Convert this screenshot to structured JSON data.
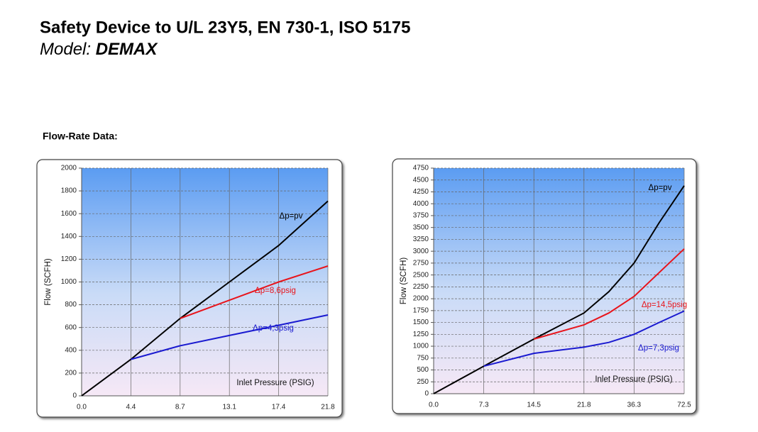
{
  "header": {
    "title": "Safety Device to U/L 23Y5, EN 730-1, ISO 5175",
    "model_label": "Model:",
    "model_name": "DEMAX"
  },
  "section_label": "Flow-Rate Data:",
  "chart_data": [
    {
      "type": "line",
      "x_label": "Inlet Pressure (PSIG)",
      "y_label": "Flow  (SCFH)",
      "xlim": [
        0,
        21.8
      ],
      "xticks": [
        {
          "value": 0,
          "label": "0.0"
        },
        4.4,
        8.7,
        13.1,
        17.4,
        21.8
      ],
      "ylim": [
        0,
        2000
      ],
      "yticks": [
        0,
        200,
        400,
        600,
        800,
        1000,
        1200,
        1400,
        1600,
        1800,
        2000
      ],
      "grid": true,
      "series": [
        {
          "name": "Δp=pv",
          "color": "#000000",
          "x": [
            0,
            4.4,
            8.7,
            13.1,
            17.4,
            21.8
          ],
          "values": [
            0,
            320,
            680,
            1000,
            1320,
            1710
          ]
        },
        {
          "name": "Δp=8,6psig",
          "color": "#e8141b",
          "x": [
            8.7,
            13.1,
            17.4,
            21.8
          ],
          "values": [
            680,
            840,
            1000,
            1140
          ]
        },
        {
          "name": "Δp=4,3psig",
          "color": "#1a1ad0",
          "x": [
            4.4,
            8.7,
            13.1,
            17.4,
            21.8
          ],
          "values": [
            320,
            440,
            530,
            620,
            710
          ]
        }
      ]
    },
    {
      "type": "line",
      "x_label": "Inlet Pressure (PSIG)",
      "y_label": "Flow (SCFH)",
      "xlim": [
        0,
        72.5
      ],
      "xticks": [
        {
          "value": 0,
          "label": "0.0"
        },
        7.3,
        14.5,
        21.8,
        36.3,
        72.5
      ],
      "ylim": [
        0,
        4750
      ],
      "yticks": [
        0,
        250,
        500,
        750,
        1000,
        1250,
        1500,
        1750,
        2000,
        2250,
        2500,
        2750,
        3000,
        3250,
        3500,
        3750,
        4000,
        4250,
        4500,
        4750
      ],
      "grid": true,
      "series": [
        {
          "name": "Δp=pv",
          "color": "#000000",
          "x": [
            0,
            7.3,
            14.5,
            21.8,
            29,
            36.3,
            54.4,
            72.5
          ],
          "values": [
            0,
            580,
            1150,
            1700,
            2150,
            2750,
            3600,
            4380
          ]
        },
        {
          "name": "Δp=14,5psig",
          "color": "#e8141b",
          "x": [
            14.5,
            21.8,
            29,
            36.3,
            54.4,
            72.5
          ],
          "values": [
            1150,
            1450,
            1700,
            2050,
            2550,
            3050
          ]
        },
        {
          "name": "Δp=7,3psig",
          "color": "#1a1ad0",
          "x": [
            7.3,
            14.5,
            21.8,
            29,
            36.3,
            54.4,
            72.5
          ],
          "values": [
            580,
            850,
            980,
            1080,
            1250,
            1500,
            1740
          ]
        }
      ]
    }
  ]
}
